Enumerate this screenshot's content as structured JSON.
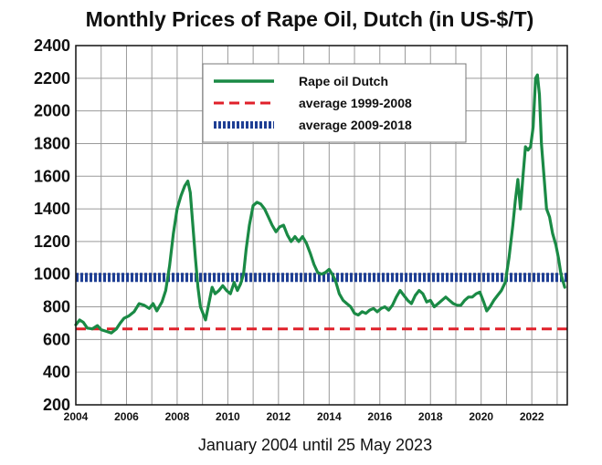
{
  "chart_data": {
    "type": "line",
    "title": "Monthly Prices of Rape Oil, Dutch (in US-$/T)",
    "xlabel": "January 2004 until 25 May 2023",
    "ylabel": "",
    "xlim": [
      2004,
      2023.4
    ],
    "ylim": [
      200,
      2400
    ],
    "x_ticks": [
      2004,
      2006,
      2008,
      2010,
      2012,
      2014,
      2016,
      2018,
      2020,
      2022
    ],
    "y_ticks": [
      200,
      400,
      600,
      800,
      1000,
      1200,
      1400,
      1600,
      1800,
      2000,
      2200,
      2400
    ],
    "grid": true,
    "legend_position": "top-center",
    "series": [
      {
        "name": "Rape oil Dutch",
        "style": "solid",
        "color": "#1a8a45",
        "points": [
          [
            2004.0,
            690
          ],
          [
            2004.15,
            720
          ],
          [
            2004.3,
            705
          ],
          [
            2004.45,
            670
          ],
          [
            2004.65,
            665
          ],
          [
            2004.85,
            685
          ],
          [
            2005.0,
            660
          ],
          [
            2005.2,
            650
          ],
          [
            2005.4,
            640
          ],
          [
            2005.6,
            665
          ],
          [
            2005.75,
            700
          ],
          [
            2005.9,
            730
          ],
          [
            2006.1,
            745
          ],
          [
            2006.3,
            770
          ],
          [
            2006.5,
            820
          ],
          [
            2006.7,
            810
          ],
          [
            2006.9,
            790
          ],
          [
            2007.05,
            820
          ],
          [
            2007.2,
            775
          ],
          [
            2007.4,
            830
          ],
          [
            2007.55,
            900
          ],
          [
            2007.7,
            1050
          ],
          [
            2007.85,
            1250
          ],
          [
            2008.0,
            1400
          ],
          [
            2008.15,
            1480
          ],
          [
            2008.3,
            1540
          ],
          [
            2008.42,
            1570
          ],
          [
            2008.52,
            1500
          ],
          [
            2008.62,
            1300
          ],
          [
            2008.72,
            1100
          ],
          [
            2008.82,
            920
          ],
          [
            2008.92,
            800
          ],
          [
            2009.02,
            760
          ],
          [
            2009.12,
            720
          ],
          [
            2009.25,
            820
          ],
          [
            2009.38,
            920
          ],
          [
            2009.5,
            880
          ],
          [
            2009.65,
            900
          ],
          [
            2009.8,
            930
          ],
          [
            2009.95,
            900
          ],
          [
            2010.1,
            880
          ],
          [
            2010.25,
            950
          ],
          [
            2010.38,
            900
          ],
          [
            2010.5,
            940
          ],
          [
            2010.62,
            1000
          ],
          [
            2010.72,
            1150
          ],
          [
            2010.85,
            1300
          ],
          [
            2011.0,
            1420
          ],
          [
            2011.15,
            1440
          ],
          [
            2011.3,
            1430
          ],
          [
            2011.45,
            1400
          ],
          [
            2011.6,
            1350
          ],
          [
            2011.75,
            1300
          ],
          [
            2011.9,
            1260
          ],
          [
            2012.05,
            1290
          ],
          [
            2012.2,
            1300
          ],
          [
            2012.35,
            1240
          ],
          [
            2012.5,
            1200
          ],
          [
            2012.65,
            1230
          ],
          [
            2012.8,
            1200
          ],
          [
            2012.95,
            1230
          ],
          [
            2013.1,
            1190
          ],
          [
            2013.25,
            1130
          ],
          [
            2013.4,
            1060
          ],
          [
            2013.55,
            1010
          ],
          [
            2013.7,
            1000
          ],
          [
            2013.85,
            1010
          ],
          [
            2014.0,
            1030
          ],
          [
            2014.12,
            1000
          ],
          [
            2014.25,
            960
          ],
          [
            2014.4,
            880
          ],
          [
            2014.55,
            840
          ],
          [
            2014.7,
            820
          ],
          [
            2014.85,
            800
          ],
          [
            2015.0,
            760
          ],
          [
            2015.15,
            750
          ],
          [
            2015.3,
            770
          ],
          [
            2015.45,
            760
          ],
          [
            2015.6,
            780
          ],
          [
            2015.75,
            790
          ],
          [
            2015.9,
            770
          ],
          [
            2016.05,
            790
          ],
          [
            2016.2,
            800
          ],
          [
            2016.35,
            780
          ],
          [
            2016.5,
            810
          ],
          [
            2016.65,
            860
          ],
          [
            2016.8,
            900
          ],
          [
            2016.95,
            870
          ],
          [
            2017.1,
            840
          ],
          [
            2017.25,
            820
          ],
          [
            2017.4,
            870
          ],
          [
            2017.55,
            900
          ],
          [
            2017.7,
            880
          ],
          [
            2017.85,
            830
          ],
          [
            2018.0,
            840
          ],
          [
            2018.15,
            800
          ],
          [
            2018.3,
            820
          ],
          [
            2018.45,
            840
          ],
          [
            2018.6,
            860
          ],
          [
            2018.75,
            840
          ],
          [
            2018.9,
            820
          ],
          [
            2019.05,
            810
          ],
          [
            2019.2,
            810
          ],
          [
            2019.35,
            840
          ],
          [
            2019.5,
            860
          ],
          [
            2019.65,
            860
          ],
          [
            2019.8,
            880
          ],
          [
            2019.95,
            890
          ],
          [
            2020.1,
            830
          ],
          [
            2020.22,
            775
          ],
          [
            2020.35,
            800
          ],
          [
            2020.5,
            840
          ],
          [
            2020.65,
            870
          ],
          [
            2020.8,
            900
          ],
          [
            2020.95,
            950
          ],
          [
            2021.1,
            1100
          ],
          [
            2021.25,
            1300
          ],
          [
            2021.35,
            1450
          ],
          [
            2021.45,
            1580
          ],
          [
            2021.55,
            1400
          ],
          [
            2021.65,
            1600
          ],
          [
            2021.75,
            1780
          ],
          [
            2021.85,
            1760
          ],
          [
            2021.95,
            1780
          ],
          [
            2022.05,
            1900
          ],
          [
            2022.15,
            2200
          ],
          [
            2022.22,
            2220
          ],
          [
            2022.3,
            2100
          ],
          [
            2022.38,
            1800
          ],
          [
            2022.48,
            1600
          ],
          [
            2022.58,
            1400
          ],
          [
            2022.7,
            1350
          ],
          [
            2022.82,
            1250
          ],
          [
            2022.95,
            1180
          ],
          [
            2023.05,
            1100
          ],
          [
            2023.15,
            1000
          ],
          [
            2023.3,
            920
          ]
        ]
      },
      {
        "name": "average 1999-2008",
        "style": "dashed",
        "color": "#e0202a",
        "value": 665
      },
      {
        "name": "average 2009-2018",
        "style": "dotted-band",
        "color": "#1f3f94",
        "value": 980
      }
    ]
  }
}
